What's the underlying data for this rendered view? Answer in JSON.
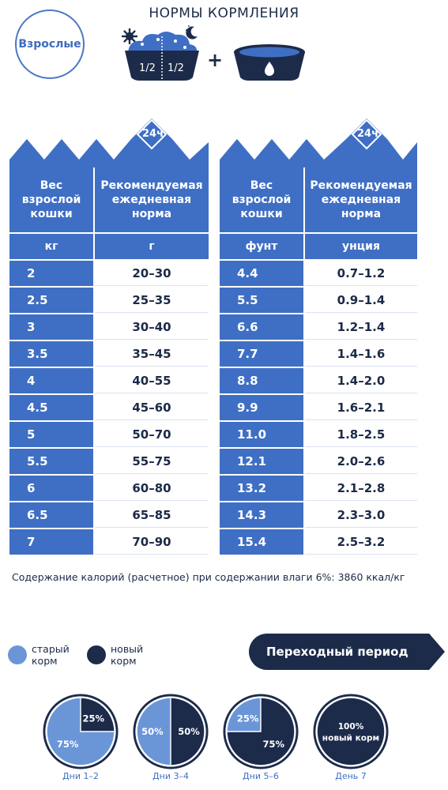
{
  "title": "НОРМЫ КОРМЛЕНИЯ",
  "badge": "Взрослые",
  "bowl": {
    "half_left": "1/2",
    "half_right": "1/2",
    "plus": "+",
    "sun": "sun-icon",
    "moon": "moon-icon"
  },
  "colors": {
    "blue": "#3f6fc4",
    "light_blue": "#6a96d8",
    "navy": "#1c2b4a"
  },
  "metric": {
    "period": "24ч",
    "col1_header": [
      "Вес",
      "взрослой",
      "кошки"
    ],
    "col2_header": [
      "Рекомендуемая",
      "ежедневная",
      "норма"
    ],
    "unit1": "кг",
    "unit2": "г",
    "rows": [
      [
        "2",
        "20–30"
      ],
      [
        "2.5",
        "25–35"
      ],
      [
        "3",
        "30–40"
      ],
      [
        "3.5",
        "35–45"
      ],
      [
        "4",
        "40–55"
      ],
      [
        "4.5",
        "45–60"
      ],
      [
        "5",
        "50–70"
      ],
      [
        "5.5",
        "55–75"
      ],
      [
        "6",
        "60–80"
      ],
      [
        "6.5",
        "65–85"
      ],
      [
        "7",
        "70–90"
      ]
    ]
  },
  "imperial": {
    "period": "24ч",
    "col1_header": [
      "Вес",
      "взрослой",
      "кошки"
    ],
    "col2_header": [
      "Рекомендуемая",
      "ежедневная",
      "норма"
    ],
    "unit1": "фунт",
    "unit2": "унция",
    "rows": [
      [
        "4.4",
        "0.7–1.2"
      ],
      [
        "5.5",
        "0.9–1.4"
      ],
      [
        "6.6",
        "1.2–1.4"
      ],
      [
        "7.7",
        "1.4–1.6"
      ],
      [
        "8.8",
        "1.4–2.0"
      ],
      [
        "9.9",
        "1.6–2.1"
      ],
      [
        "11.0",
        "1.8–2.5"
      ],
      [
        "12.1",
        "2.0–2.6"
      ],
      [
        "13.2",
        "2.1–2.8"
      ],
      [
        "14.3",
        "2.3–3.0"
      ],
      [
        "15.4",
        "2.5–3.2"
      ]
    ]
  },
  "calories": "Содержание калорий (расчетное) при содержании влаги 6%: 3860 ккал/кг",
  "legend": {
    "old": [
      "старый",
      "корм"
    ],
    "new": [
      "новый",
      "корм"
    ]
  },
  "transition": "Переходный период",
  "pies": [
    {
      "day": "Дни 1–2",
      "old": 75,
      "new": 25,
      "old_label": "75%",
      "new_label": "25%"
    },
    {
      "day": "Дни 3–4",
      "old": 50,
      "new": 50,
      "old_label": "50%",
      "new_label": "50%"
    },
    {
      "day": "Дни 5–6",
      "old": 25,
      "new": 75,
      "old_label": "25%",
      "new_label": "75%"
    },
    {
      "day": "День 7",
      "old": 0,
      "new": 100,
      "full_label": [
        "100%",
        "новый корм"
      ]
    }
  ]
}
